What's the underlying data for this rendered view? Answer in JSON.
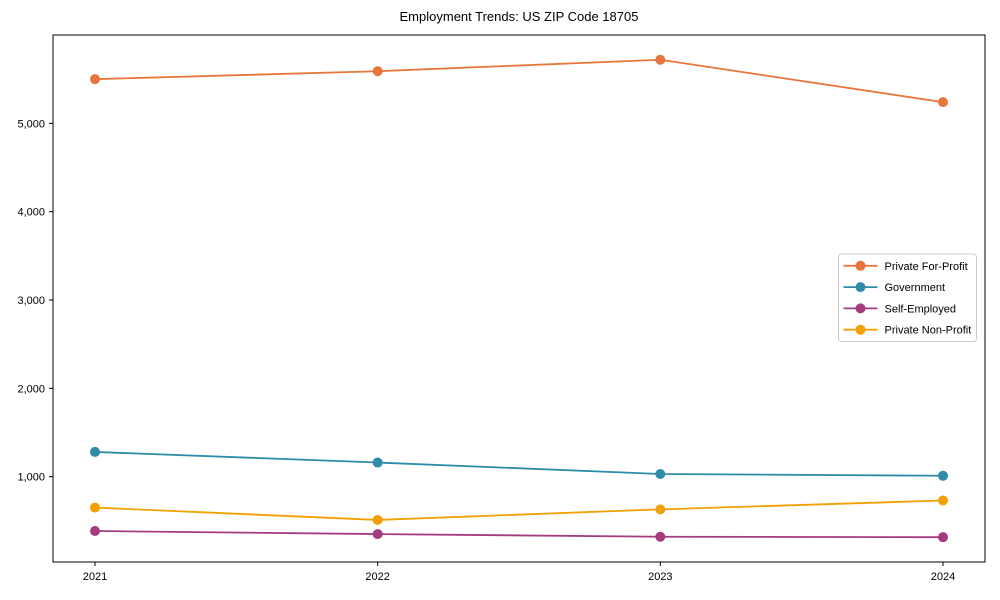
{
  "chart": {
    "title": "Employment Trends: US ZIP Code 18705"
  },
  "chart_data": {
    "type": "line",
    "title": "Employment Trends: US ZIP Code 18705",
    "xlabel": "",
    "ylabel": "",
    "x": [
      2021,
      2022,
      2023,
      2024
    ],
    "x_tick_labels": [
      "2021",
      "2022",
      "2023",
      "2024"
    ],
    "y_ticks": [
      1000,
      2000,
      3000,
      4000,
      5000
    ],
    "y_tick_labels": [
      "1,000",
      "2,000",
      "3,000",
      "4,000",
      "5,000"
    ],
    "ylim": [
      34,
      6000
    ],
    "grid": false,
    "marker": "o",
    "legend_position": "center-right",
    "series": [
      {
        "name": "Private For-Profit",
        "color": "#E8763C",
        "values": [
          5500,
          5590,
          5720,
          5240
        ]
      },
      {
        "name": "Government",
        "color": "#2E8CA8",
        "values": [
          1280,
          1160,
          1030,
          1010
        ]
      },
      {
        "name": "Self-Employed",
        "color": "#A33B80",
        "values": [
          385,
          350,
          320,
          315
        ]
      },
      {
        "name": "Private Non-Profit",
        "color": "#F2A104",
        "values": [
          650,
          510,
          630,
          730
        ]
      }
    ]
  },
  "colors": {
    "background": "#FFFFFF",
    "axis": "#000000",
    "tick_label": "#000000",
    "legend_border": "#CCCCCC",
    "legend_background": "#FFFFFF"
  }
}
